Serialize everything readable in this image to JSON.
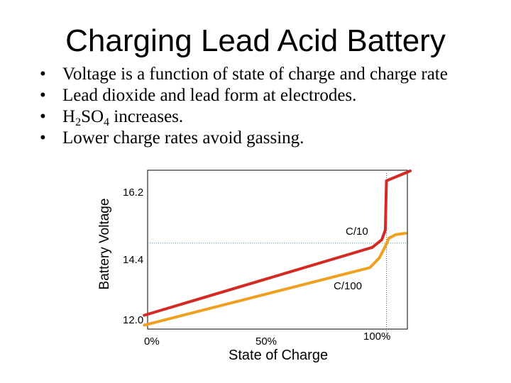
{
  "slide": {
    "title": "Charging Lead Acid Battery",
    "bullet_marker": "•",
    "bullets": [
      "Voltage is a function of state of charge and charge rate",
      "Lead dioxide and lead form at electrodes.",
      {
        "pre": "H",
        "sub1": "2",
        "mid": "SO",
        "sub2": "4",
        "post": " increases."
      },
      "Lower charge rates avoid gassing."
    ]
  },
  "chart_data": {
    "type": "line",
    "xlabel": "State of Charge",
    "ylabel": "Battery Voltage",
    "x_tick_labels": [
      "0%",
      "50%",
      "100%"
    ],
    "y_tick_labels": [
      "16.2",
      "14.4",
      "12.0"
    ],
    "reference_lines": {
      "x": 100,
      "y": 14.4
    },
    "xlim": [
      0,
      110
    ],
    "ylim": [
      11.8,
      16.6
    ],
    "series": [
      {
        "name": "C/10",
        "color": "#d42a24",
        "points": [
          [
            -2,
            12.2
          ],
          [
            94,
            14.27
          ],
          [
            98,
            14.5
          ],
          [
            99.5,
            14.8
          ],
          [
            100,
            16.3
          ],
          [
            110,
            16.6
          ]
        ]
      },
      {
        "name": "C/100",
        "color": "#f0a020",
        "points": [
          [
            -2,
            11.9
          ],
          [
            93,
            13.65
          ],
          [
            97,
            13.95
          ],
          [
            99.5,
            14.3
          ],
          [
            101,
            14.55
          ],
          [
            104,
            14.66
          ],
          [
            108,
            14.7
          ]
        ]
      }
    ]
  }
}
